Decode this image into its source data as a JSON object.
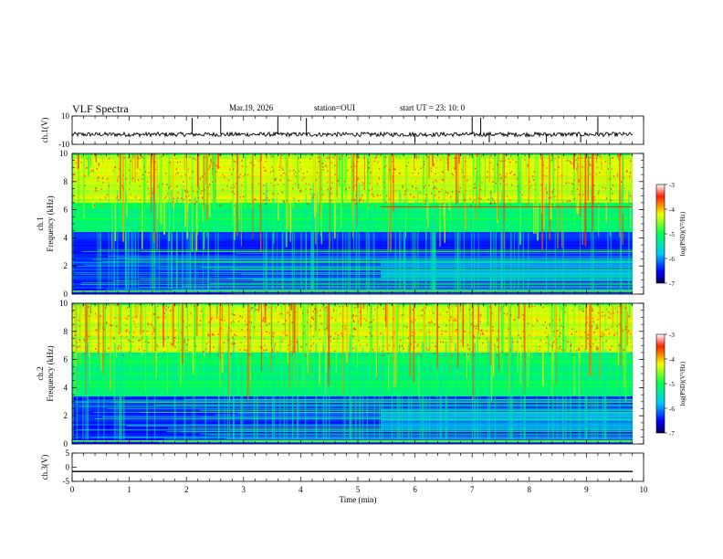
{
  "header": {
    "title": "VLF Spectra",
    "date": "Mar.19, 2026",
    "station": "station=OUI",
    "start": "start  UT =   23: 10: 0"
  },
  "colors": {
    "spec_low": "#0000b4",
    "spec_mid": "#00ff55",
    "spec_high": "#ff1e00",
    "trace": "#000000"
  },
  "chart_data": [
    {
      "type": "line",
      "name": "ch1-waveform",
      "ylabel": "ch.1(V)",
      "ylim": [
        -10,
        10
      ],
      "yticks": [
        "10",
        "-10"
      ],
      "xlim": [
        0,
        10
      ],
      "baseline": -3,
      "noise_amplitude": 1.5,
      "spikes": [
        2.1,
        2.6,
        3.6,
        4.1,
        6.0,
        7.0,
        7.15,
        7.3,
        8.3,
        8.9,
        9.2
      ]
    },
    {
      "type": "heatmap",
      "name": "ch1-spectrogram",
      "ylabel": "ch.1\nFrequency (kHz)",
      "ylabel_line1": "ch.1",
      "ylabel_line2": "Frequency (kHz)",
      "ylim": [
        0,
        10
      ],
      "yticks": [
        "0",
        "2",
        "4",
        "6",
        "8",
        "10"
      ],
      "xlim": [
        0,
        9.82
      ],
      "colorbar": {
        "range": [
          -7,
          -3
        ],
        "ticks": [
          "-3",
          "-4",
          "-5",
          "-6",
          "-7"
        ],
        "label": "log(PSD)(V²/Hz)"
      },
      "bands_khz": [
        {
          "from": 0,
          "to": 4.5,
          "level": "low"
        },
        {
          "from": 4.5,
          "to": 6.5,
          "level": "mid"
        },
        {
          "from": 6.5,
          "to": 10,
          "level": "high"
        }
      ],
      "emission_line_khz": 6.2,
      "emission_start_min": 5.4
    },
    {
      "type": "heatmap",
      "name": "ch2-spectrogram",
      "ylabel": "ch.2\nFrequency (kHz)",
      "ylabel_line1": "ch.2",
      "ylabel_line2": "Frequency (kHz)",
      "ylim": [
        0,
        10
      ],
      "yticks": [
        "0",
        "2",
        "4",
        "6",
        "8",
        "10"
      ],
      "xlim": [
        0,
        9.82
      ],
      "colorbar": {
        "range": [
          -7,
          -3
        ],
        "ticks": [
          "-3",
          "-4",
          "-5",
          "-6",
          "-7"
        ],
        "label": "log(PSD)(V²/Hz)"
      },
      "bands_khz": [
        {
          "from": 0,
          "to": 3.5,
          "level": "low"
        },
        {
          "from": 3.5,
          "to": 6.5,
          "level": "mid"
        },
        {
          "from": 6.5,
          "to": 10,
          "level": "high"
        }
      ]
    },
    {
      "type": "line",
      "name": "ch3-waveform",
      "ylabel": "ch.3(V)",
      "ylim": [
        -5,
        5
      ],
      "yticks": [
        "5",
        "0",
        "-5"
      ],
      "xlim": [
        0,
        10
      ],
      "baseline": -1.5,
      "xlabel": "Time (min)",
      "xticks": [
        "0",
        "1",
        "2",
        "3",
        "4",
        "5",
        "6",
        "7",
        "8",
        "9",
        "10"
      ]
    }
  ]
}
